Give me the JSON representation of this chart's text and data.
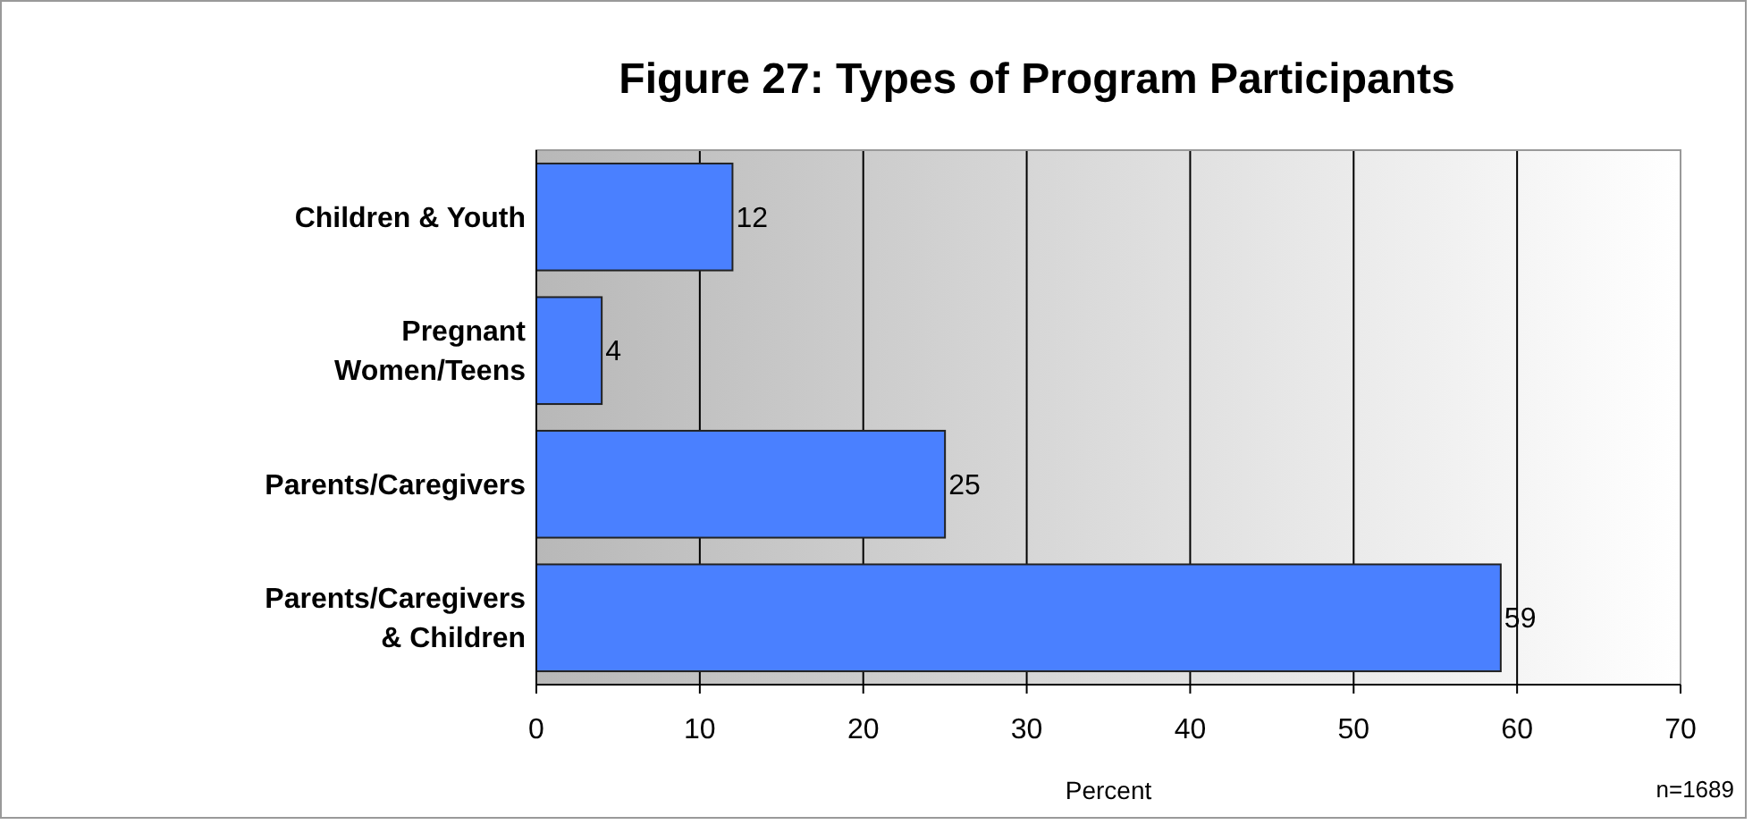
{
  "chart_data": {
    "type": "bar",
    "orientation": "horizontal",
    "title": "Figure 27: Types of Program Participants",
    "xlabel": "Percent",
    "categories": [
      "Children & Youth",
      "Pregnant Women/Teens",
      "Parents/Caregivers",
      "Parents/Caregivers & Children"
    ],
    "values": [
      12,
      4,
      25,
      59
    ],
    "color": "#4a80ff",
    "data_labels": true,
    "xlim": [
      0,
      70
    ],
    "xticks": [
      0,
      10,
      20,
      30,
      40,
      50,
      60,
      70
    ],
    "grid": "x",
    "annotations": [
      "n=1689"
    ]
  }
}
